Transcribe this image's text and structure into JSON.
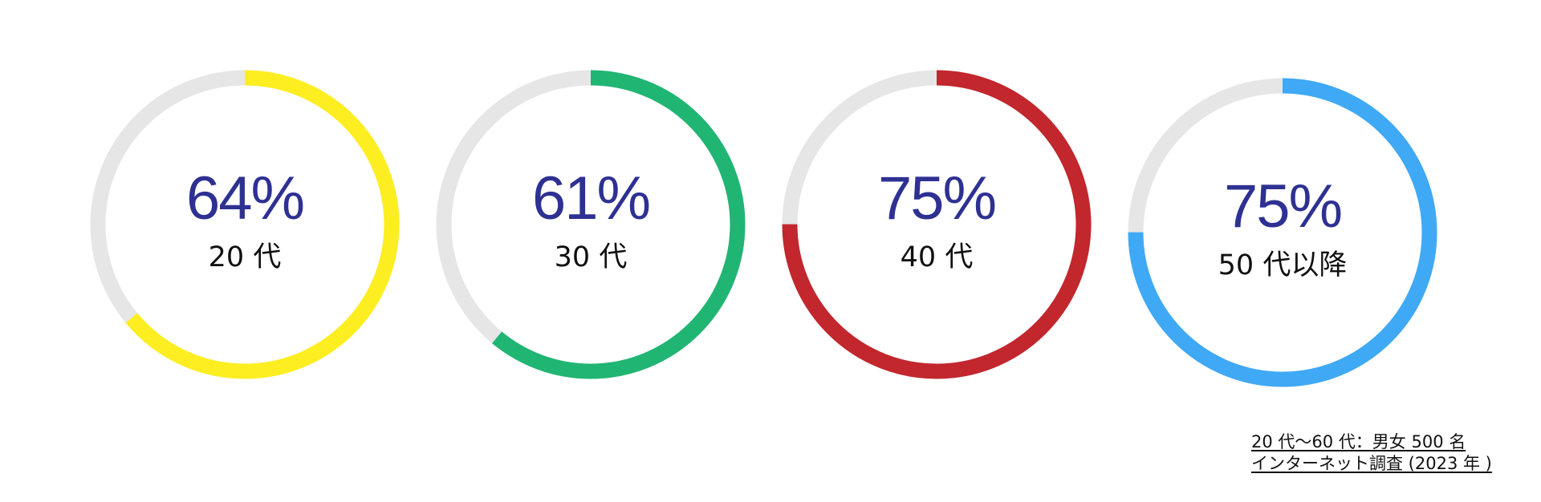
{
  "chart_data": [
    {
      "type": "pie",
      "series": [
        {
          "value": 64,
          "label": "64%"
        }
      ],
      "categories": [
        "20 代"
      ],
      "colors": {
        "fill": "#fdee21",
        "track": "#e6e6e6"
      }
    },
    {
      "type": "pie",
      "series": [
        {
          "value": 61,
          "label": "61%"
        }
      ],
      "categories": [
        "30 代"
      ],
      "colors": {
        "fill": "#21b573",
        "track": "#e6e6e6"
      }
    },
    {
      "type": "pie",
      "series": [
        {
          "value": 75,
          "label": "75%"
        }
      ],
      "categories": [
        "40 代"
      ],
      "colors": {
        "fill": "#c1272d",
        "track": "#e6e6e6"
      }
    },
    {
      "type": "pie",
      "series": [
        {
          "value": 75,
          "label": "75%"
        }
      ],
      "categories": [
        "50 代以降"
      ],
      "colors": {
        "fill": "#3fa9f5",
        "track": "#e6e6e6"
      }
    }
  ],
  "source_note": {
    "line1": "20 代〜60 代：男女 500 名",
    "line2": "インターネット調査 (2023 年 )"
  }
}
